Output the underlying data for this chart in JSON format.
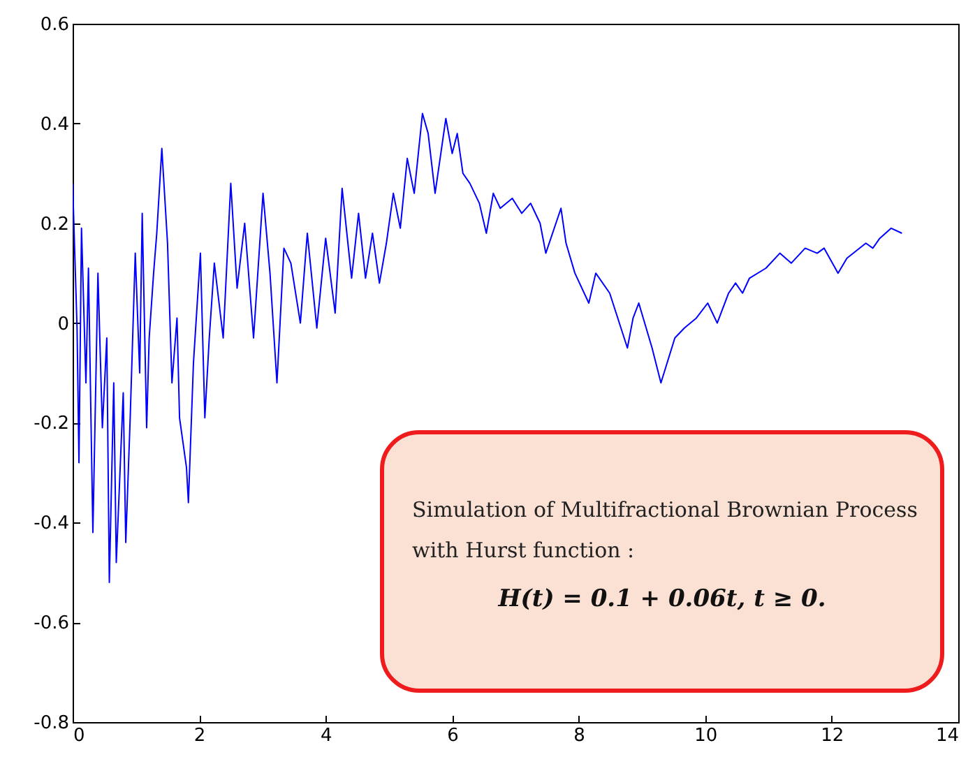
{
  "chart_data": {
    "type": "line",
    "x": [
      0,
      0.07,
      0.1,
      0.14,
      0.21,
      0.25,
      0.32,
      0.4,
      0.47,
      0.54,
      0.58,
      0.65,
      0.69,
      0.8,
      0.84,
      0.91,
      0.99,
      1.06,
      1.1,
      1.17,
      1.21,
      1.28,
      1.33,
      1.41,
      1.5,
      1.57,
      1.65,
      1.69,
      1.8,
      1.83,
      1.91,
      2.02,
      2.09,
      2.16,
      2.24,
      2.38,
      2.5,
      2.6,
      2.72,
      2.86,
      3.01,
      3.12,
      3.23,
      3.34,
      3.45,
      3.6,
      3.71,
      3.86,
      4.0,
      4.15,
      4.26,
      4.41,
      4.52,
      4.63,
      4.74,
      4.85,
      4.96,
      5.07,
      5.18,
      5.29,
      5.4,
      5.53,
      5.62,
      5.73,
      5.9,
      6.0,
      6.08,
      6.17,
      6.28,
      6.43,
      6.54,
      6.65,
      6.76,
      6.95,
      7.1,
      7.24,
      7.39,
      7.48,
      7.72,
      7.8,
      7.94,
      8.16,
      8.27,
      8.49,
      8.77,
      8.86,
      8.95,
      9.02,
      9.16,
      9.3,
      9.52,
      9.67,
      9.86,
      10.04,
      10.19,
      10.37,
      10.48,
      10.59,
      10.7,
      10.96,
      11.18,
      11.36,
      11.58,
      11.77,
      11.88,
      12.1,
      12.24,
      12.54,
      12.65,
      12.76,
      12.94,
      13.11
    ],
    "series": [
      {
        "color": "#0000ff",
        "values": [
          0.28,
          -0.01,
          -0.28,
          0.19,
          -0.12,
          0.11,
          -0.42,
          0.1,
          -0.21,
          -0.03,
          -0.52,
          -0.12,
          -0.48,
          -0.14,
          -0.44,
          -0.19,
          0.14,
          -0.1,
          0.22,
          -0.21,
          -0.03,
          0.1,
          0.18,
          0.35,
          0.16,
          -0.12,
          0.01,
          -0.19,
          -0.29,
          -0.36,
          -0.08,
          0.14,
          -0.19,
          -0.03,
          0.12,
          -0.03,
          0.28,
          0.07,
          0.2,
          -0.03,
          0.26,
          0.1,
          -0.12,
          0.15,
          0.12,
          0.0,
          0.18,
          -0.01,
          0.17,
          0.02,
          0.27,
          0.09,
          0.22,
          0.09,
          0.18,
          0.08,
          0.16,
          0.26,
          0.19,
          0.33,
          0.26,
          0.42,
          0.38,
          0.26,
          0.41,
          0.34,
          0.38,
          0.3,
          0.28,
          0.24,
          0.18,
          0.26,
          0.23,
          0.25,
          0.22,
          0.24,
          0.2,
          0.14,
          0.23,
          0.16,
          0.1,
          0.04,
          0.1,
          0.06,
          -0.05,
          0.01,
          0.04,
          0.01,
          -0.05,
          -0.12,
          -0.03,
          -0.01,
          0.01,
          0.04,
          0.0,
          0.06,
          0.08,
          0.06,
          0.09,
          0.11,
          0.14,
          0.12,
          0.15,
          0.14,
          0.15,
          0.1,
          0.13,
          0.16,
          0.15,
          0.17,
          0.19,
          0.18
        ]
      }
    ],
    "xlim": [
      0,
      14
    ],
    "xticks": [
      0,
      2,
      4,
      6,
      8,
      10,
      12,
      14
    ],
    "ylim": [
      -0.8,
      0.6
    ],
    "yticks": [
      -0.8,
      -0.6,
      -0.4,
      -0.2,
      0,
      0.2,
      0.4,
      0.6
    ],
    "annotations": [
      "Simulation of Multifractional Brownian Process with Hurst function :",
      "H(t) = 0.1 + 0.06t,    t ≥ 0."
    ]
  }
}
